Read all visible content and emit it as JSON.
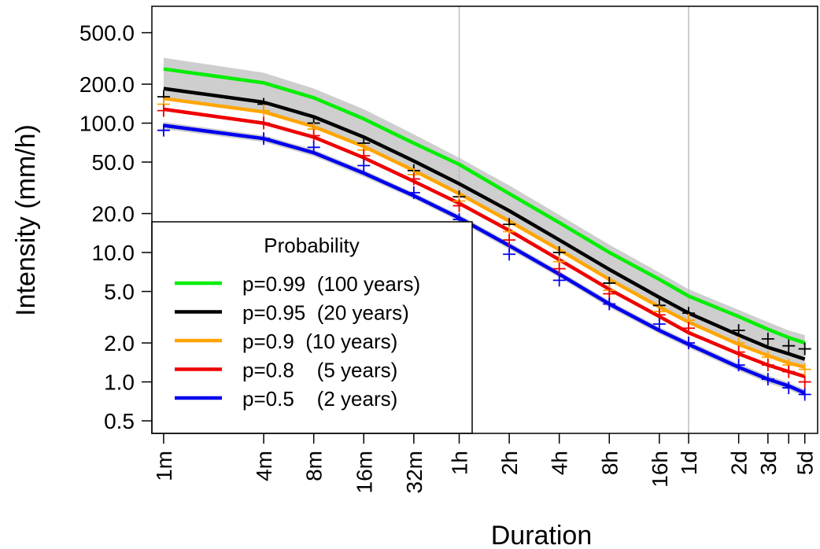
{
  "chart_data": {
    "type": "line",
    "xlabel": "Duration",
    "ylabel": "Intensity (mm/h)",
    "x_scale": "log",
    "y_scale": "log",
    "ylim": [
      0.4,
      800
    ],
    "xlim_minutes": [
      0.85,
      8600
    ],
    "x_ticks": [
      {
        "label": "1m",
        "minutes": 1
      },
      {
        "label": "4m",
        "minutes": 4
      },
      {
        "label": "8m",
        "minutes": 8
      },
      {
        "label": "16m",
        "minutes": 16
      },
      {
        "label": "32m",
        "minutes": 32
      },
      {
        "label": "1h",
        "minutes": 60
      },
      {
        "label": "2h",
        "minutes": 120
      },
      {
        "label": "4h",
        "minutes": 240
      },
      {
        "label": "8h",
        "minutes": 480
      },
      {
        "label": "16h",
        "minutes": 960
      },
      {
        "label": "1d",
        "minutes": 1440
      },
      {
        "label": "2d",
        "minutes": 2880
      },
      {
        "label": "3d",
        "minutes": 4320
      },
      {
        "label": "",
        "minutes": 5760
      },
      {
        "label": "5d",
        "minutes": 7200
      }
    ],
    "y_ticks": [
      {
        "label": "0.5",
        "value": 0.5
      },
      {
        "label": "1.0",
        "value": 1
      },
      {
        "label": "2.0",
        "value": 2
      },
      {
        "label": "5.0",
        "value": 5
      },
      {
        "label": "10.0",
        "value": 10
      },
      {
        "label": "20.0",
        "value": 20
      },
      {
        "label": "50.0",
        "value": 50
      },
      {
        "label": "100.0",
        "value": 100
      },
      {
        "label": "200.0",
        "value": 200
      },
      {
        "label": "500.0",
        "value": 500
      }
    ],
    "vlines_minutes": [
      60,
      1440
    ],
    "vline_color": "#bebebe",
    "band_color": "#bebebe",
    "curve_minutes": [
      1,
      4,
      8,
      16,
      32,
      60,
      120,
      240,
      480,
      960,
      1440,
      2880,
      4320,
      5760,
      7200
    ],
    "series": [
      {
        "name": "p=0.99  (100 years)",
        "color": "#00ee00",
        "curve": [
          262,
          205,
          157,
          108,
          70,
          48,
          28.5,
          17,
          10,
          6.2,
          4.6,
          3.2,
          2.55,
          2.2,
          2.0
        ],
        "band": null,
        "observed": null
      },
      {
        "name": "p=0.95  (20 years)",
        "color": "#000000",
        "curve": [
          185,
          145,
          112,
          78,
          51,
          34,
          21,
          12.5,
          7.4,
          4.5,
          3.4,
          2.3,
          1.85,
          1.65,
          1.5
        ],
        "band": {
          "upper": [
            320,
            245,
            185,
            128,
            82,
            54,
            33,
            19.5,
            11.5,
            7.0,
            5.2,
            3.6,
            2.9,
            2.5,
            2.3
          ],
          "lower": [
            160,
            125,
            97,
            67,
            44,
            29,
            18,
            10.7,
            6.3,
            3.9,
            2.9,
            1.95,
            1.6,
            1.4,
            1.3
          ]
        },
        "observed": [
          160,
          140,
          100,
          70,
          43,
          27,
          16.5,
          10,
          5.8,
          3.9,
          3.4,
          2.5,
          2.15,
          1.9,
          1.8
        ]
      },
      {
        "name": "p=0.9  (10 years)",
        "color": "#ffa500",
        "curve": [
          155,
          122,
          94,
          66,
          43,
          28.5,
          17.5,
          10.5,
          6.2,
          3.8,
          2.9,
          1.95,
          1.6,
          1.4,
          1.3
        ],
        "band": null,
        "observed": [
          140,
          125,
          90,
          62,
          40,
          25,
          14.5,
          8.5,
          5.1,
          3.5,
          3.0,
          2.0,
          1.55,
          1.35,
          1.25
        ]
      },
      {
        "name": "p=0.8    (5 years)",
        "color": "#ee0000",
        "curve": [
          128,
          100,
          78,
          54,
          35.5,
          24,
          14.8,
          8.8,
          5.2,
          3.2,
          2.4,
          1.65,
          1.35,
          1.2,
          1.1
        ],
        "band": null,
        "observed": [
          125,
          100,
          80,
          56,
          37,
          23,
          12.5,
          7.5,
          4.8,
          3.3,
          2.6,
          1.7,
          1.35,
          1.2,
          1.0
        ]
      },
      {
        "name": "p=0.5    (2 years)",
        "color": "#0000ee",
        "curve": [
          96,
          76,
          59,
          41,
          27.5,
          18.5,
          11.3,
          6.8,
          4.0,
          2.5,
          1.95,
          1.3,
          1.05,
          0.93,
          0.82
        ],
        "band": {
          "upper": [
            102,
            80.5,
            62.5,
            43.5,
            29,
            19.6,
            12,
            7.2,
            4.25,
            2.65,
            2.07,
            1.38,
            1.12,
            0.99,
            0.87
          ],
          "lower": [
            90,
            71.5,
            55.5,
            38.5,
            26,
            17.4,
            10.6,
            6.4,
            3.75,
            2.35,
            1.83,
            1.22,
            0.98,
            0.87,
            0.77
          ]
        },
        "observed": [
          88,
          76,
          65,
          47,
          29,
          18,
          9.7,
          6.1,
          4.0,
          2.8,
          2.0,
          1.35,
          1.05,
          0.9,
          0.8
        ]
      }
    ],
    "legend": {
      "title": "Probability",
      "position": "bottom-left",
      "entries": [
        "p=0.99  (100 years)",
        "p=0.95  (20 years)",
        "p=0.9  (10 years)",
        "p=0.8    (5 years)",
        "p=0.5    (2 years)"
      ]
    }
  }
}
